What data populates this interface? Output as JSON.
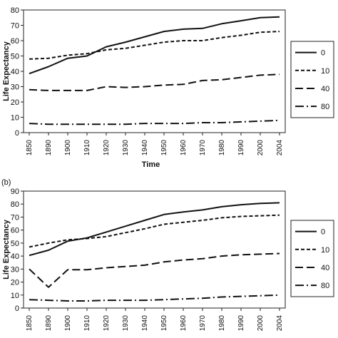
{
  "chart_data": [
    {
      "type": "line",
      "panel_label": "",
      "title": "",
      "xlabel": "Time",
      "ylabel": "Life Expectancy",
      "categories": [
        "1850",
        "1890",
        "1900",
        "1910",
        "1920",
        "1930",
        "1940",
        "1950",
        "1960",
        "1970",
        "1980",
        "1990",
        "2000",
        "2004"
      ],
      "ylim": [
        0,
        80
      ],
      "yticks": [
        0,
        10,
        20,
        30,
        40,
        50,
        60,
        70,
        80
      ],
      "grid": false,
      "legend_position": "right",
      "series": [
        {
          "name": "0",
          "style": "solid",
          "values": [
            38.5,
            43,
            48.5,
            50,
            56,
            59,
            62.5,
            66,
            67.5,
            68,
            71,
            73,
            75,
            75.5
          ]
        },
        {
          "name": "10",
          "style": "dashed",
          "values": [
            48,
            48.5,
            50.5,
            51.5,
            54,
            55,
            57,
            59,
            60,
            60,
            62,
            63.5,
            65.5,
            66
          ]
        },
        {
          "name": "40",
          "style": "longdash",
          "values": [
            28,
            27.5,
            27.5,
            27.5,
            30,
            29.5,
            30,
            31,
            31.5,
            34,
            34.5,
            36,
            37.5,
            38
          ]
        },
        {
          "name": "80",
          "style": "dashdot",
          "values": [
            6,
            5.5,
            5.5,
            5.5,
            5.5,
            5.5,
            6,
            6,
            6,
            6.5,
            6.5,
            7,
            7.5,
            8
          ]
        }
      ]
    },
    {
      "type": "line",
      "panel_label": "(b)",
      "title": "",
      "xlabel": "",
      "ylabel": "Life Expectancy",
      "categories": [
        "1850",
        "1890",
        "1900",
        "1910",
        "1920",
        "1930",
        "1940",
        "1950",
        "1960",
        "1970",
        "1980",
        "1990",
        "2000",
        "2004"
      ],
      "ylim": [
        0,
        90
      ],
      "yticks": [
        0,
        10,
        20,
        30,
        40,
        50,
        60,
        70,
        80,
        90
      ],
      "grid": false,
      "legend_position": "right",
      "series": [
        {
          "name": "0",
          "style": "solid",
          "values": [
            40.5,
            44.5,
            51.5,
            54,
            58.5,
            63,
            67.5,
            72,
            74,
            75.5,
            78,
            79.5,
            80.5,
            81
          ]
        },
        {
          "name": "10",
          "style": "dashed",
          "values": [
            47,
            50,
            52.5,
            53.5,
            55,
            58,
            61,
            64.5,
            66,
            67.5,
            69.5,
            70.5,
            71,
            71.5
          ]
        },
        {
          "name": "40",
          "style": "longdash",
          "values": [
            30,
            16,
            29.5,
            29.5,
            31,
            32,
            33,
            35.5,
            37,
            38,
            40,
            41,
            41.5,
            42
          ]
        },
        {
          "name": "80",
          "style": "dashdot",
          "values": [
            6.5,
            6,
            5.5,
            5.5,
            6,
            6,
            6,
            6.5,
            7,
            7.5,
            8.5,
            9,
            9.5,
            10
          ]
        }
      ]
    }
  ]
}
